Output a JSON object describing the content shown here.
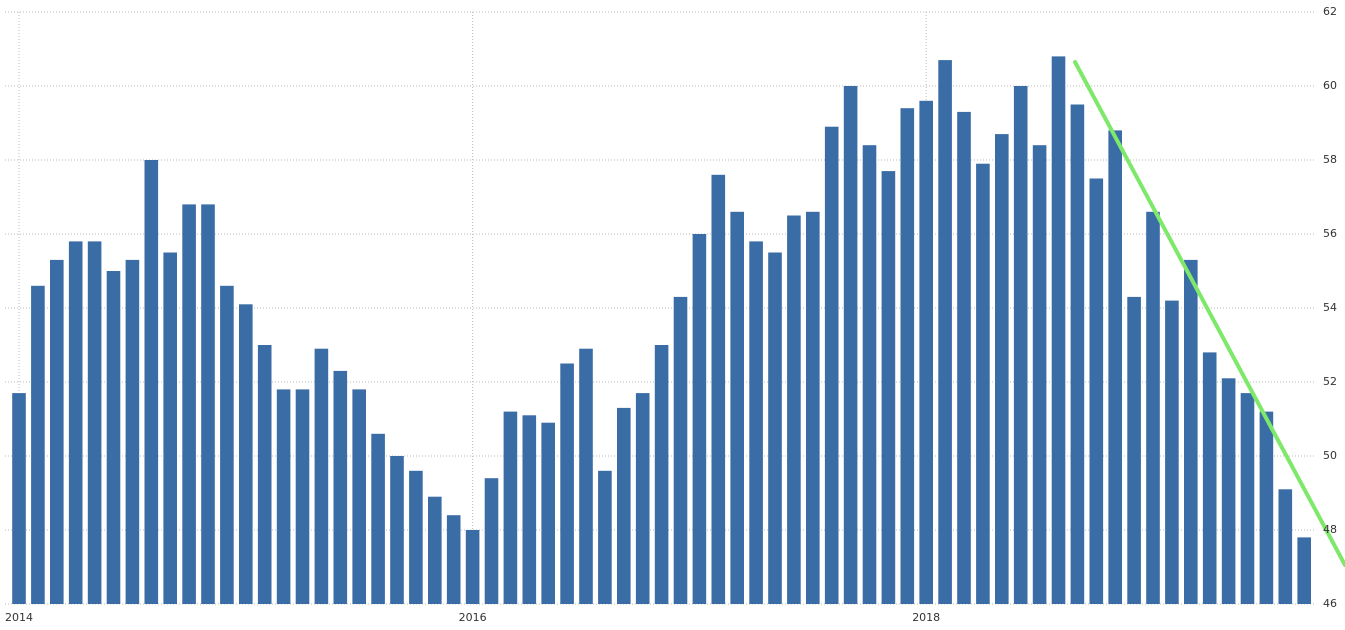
{
  "chart_data": {
    "type": "bar",
    "color": "#3a6ca6",
    "grid": true,
    "categories": [
      "2014",
      null,
      null,
      null,
      null,
      null,
      null,
      null,
      null,
      null,
      null,
      null,
      null,
      null,
      null,
      null,
      null,
      null,
      null,
      null,
      null,
      null,
      null,
      null,
      "2016",
      null,
      null,
      null,
      null,
      null,
      null,
      null,
      null,
      null,
      null,
      null,
      null,
      null,
      null,
      null,
      null,
      null,
      null,
      null,
      null,
      null,
      null,
      null,
      "2018",
      null,
      null,
      null,
      null,
      null,
      null,
      null,
      null,
      null,
      null,
      null,
      null,
      null,
      null,
      null,
      null,
      null,
      null,
      null,
      null
    ],
    "values": [
      51.7,
      54.6,
      55.3,
      55.8,
      55.8,
      55.0,
      55.3,
      58.0,
      55.5,
      56.8,
      56.8,
      54.6,
      54.1,
      53.0,
      51.8,
      51.8,
      52.9,
      52.3,
      51.8,
      50.6,
      50.0,
      49.6,
      48.9,
      48.4,
      48.0,
      49.4,
      51.2,
      51.1,
      50.9,
      52.5,
      52.9,
      49.6,
      51.3,
      51.7,
      53.0,
      54.3,
      56.0,
      57.6,
      56.6,
      55.8,
      55.5,
      56.5,
      56.6,
      58.9,
      60.0,
      58.4,
      57.7,
      59.4,
      59.6,
      60.7,
      59.3,
      57.9,
      58.7,
      60.0,
      58.4,
      60.8,
      59.5,
      57.5,
      58.8,
      54.3,
      56.6,
      54.2,
      55.3,
      52.8,
      52.1,
      51.7,
      51.2,
      49.1,
      47.8
    ],
    "ylim": [
      46,
      62
    ],
    "yticks": [
      46,
      48,
      50,
      52,
      54,
      56,
      58,
      60,
      62
    ]
  }
}
